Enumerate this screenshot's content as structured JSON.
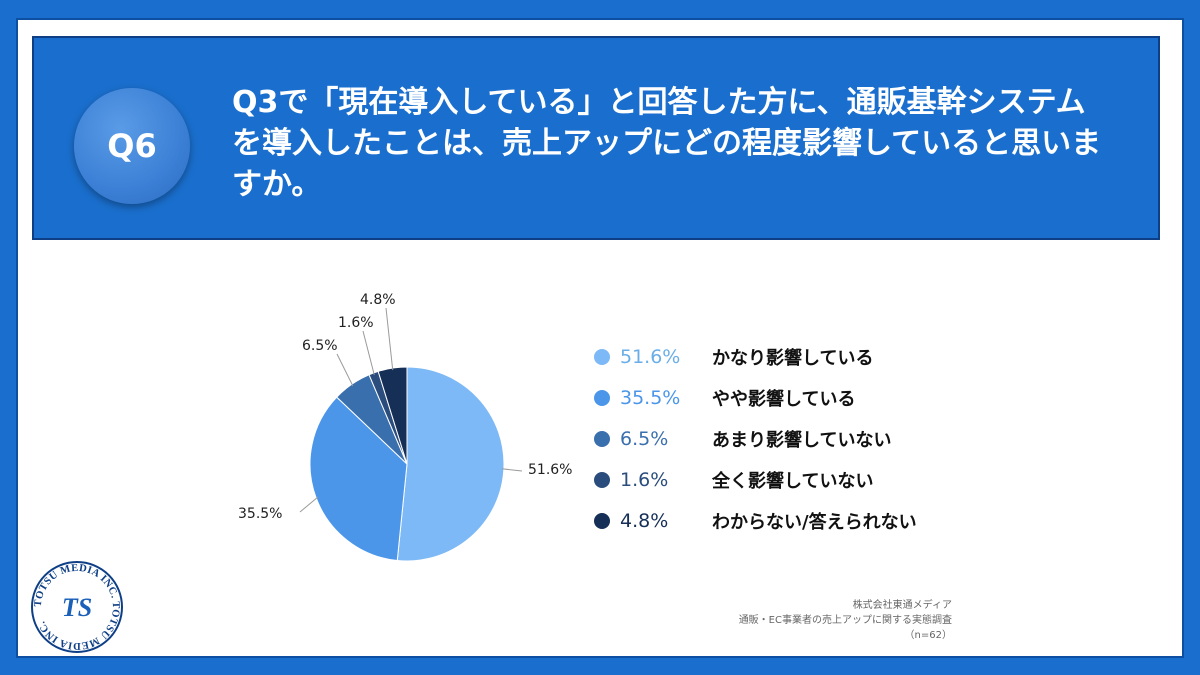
{
  "question": {
    "badge": "Q6",
    "text": "Q3で「現在導入している」と回答した方に、通販基幹システムを導入したことは、売上アップにどの程度影響していると思いますか。"
  },
  "colors": {
    "background": "#1a6fce",
    "header": "#1a6fce",
    "slices": [
      "#7cb9f6",
      "#4c96ea",
      "#3a6fae",
      "#2a4d7d",
      "#162f57"
    ]
  },
  "chart_data": {
    "type": "pie",
    "title": "",
    "categories": [
      "かなり影響している",
      "やや影響している",
      "あまり影響していない",
      "全く影響していない",
      "わからない/答えられない"
    ],
    "values": [
      51.6,
      35.5,
      6.5,
      1.6,
      4.8
    ],
    "value_labels": [
      "51.6%",
      "35.5%",
      "6.5%",
      "1.6%",
      "4.8%"
    ],
    "legend_position": "right"
  },
  "source": {
    "company": "株式会社東通メディア",
    "survey": "通販・EC事業者の売上アップに関する実態調査",
    "sample": "（n=62）"
  },
  "logo": {
    "ring_text": "TOTSU MEDIA INC. TOTSU MEDIA INC.",
    "mark": "TS"
  }
}
